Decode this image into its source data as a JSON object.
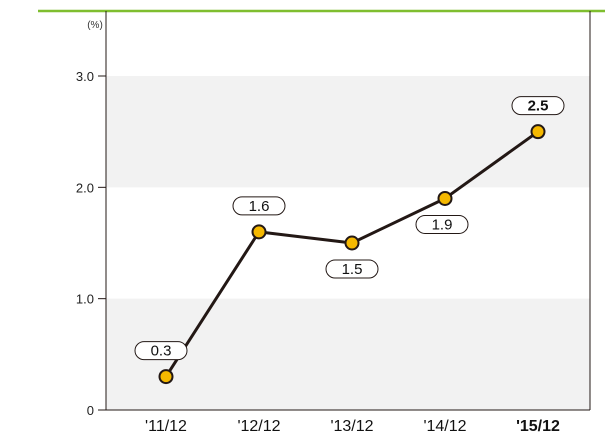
{
  "chart_data": {
    "type": "line",
    "unit_label": "(%)",
    "categories": [
      "'11/12",
      "'12/12",
      "'13/12",
      "'14/12",
      "'15/12"
    ],
    "values": [
      0.3,
      1.6,
      1.5,
      1.9,
      2.5
    ],
    "data_labels": [
      "0.3",
      "1.6",
      "1.5",
      "1.9",
      "2.5"
    ],
    "highlighted_index": 4,
    "y_ticks": [
      "0",
      "1.0",
      "2.0",
      "3.0"
    ],
    "ylim": [
      0,
      3.0
    ],
    "grid": "alternating horizontal bands",
    "colors": {
      "header_line": "#7fbe2f",
      "band": "#f2f2f2",
      "line": "#231815",
      "marker_fill": "#f5b800",
      "marker_stroke": "#231815",
      "axis": "#231815"
    }
  }
}
